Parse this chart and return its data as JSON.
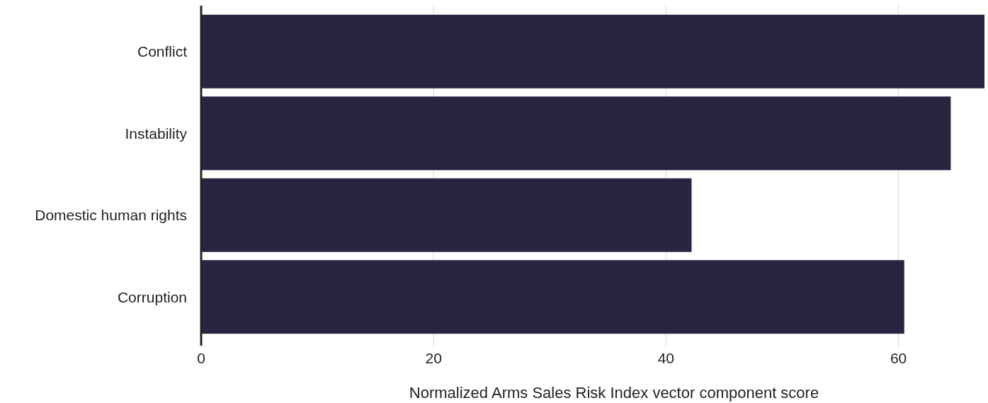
{
  "chart_data": {
    "type": "bar",
    "orientation": "horizontal",
    "xlabel": "Normalized Arms Sales Risk Index vector component score",
    "categories": [
      "Conflict",
      "Instability",
      "Domestic human rights",
      "Corruption"
    ],
    "values": [
      67.4,
      64.5,
      42.2,
      60.5
    ],
    "color": "#2a2440",
    "xlim": [
      0,
      67.4
    ],
    "xticks": [
      0,
      20,
      40,
      60
    ],
    "grid": "x"
  }
}
